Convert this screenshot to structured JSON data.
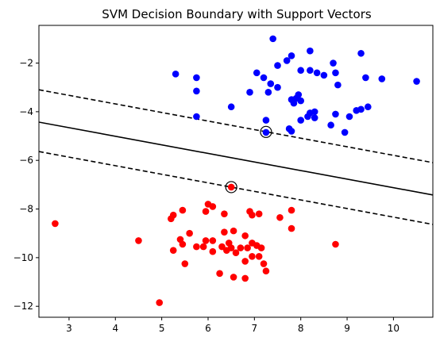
{
  "chart_data": {
    "type": "scatter",
    "title": "SVM Decision Boundary with Support Vectors",
    "xlabel": "",
    "ylabel": "",
    "xlim": [
      2.35,
      10.85
    ],
    "ylim": [
      -12.45,
      -0.45
    ],
    "xticks": [
      3,
      4,
      5,
      6,
      7,
      8,
      9,
      10
    ],
    "yticks": [
      -2,
      -4,
      -6,
      -8,
      -10,
      -12
    ],
    "grid": false,
    "colors": {
      "class_a": "#0000ff",
      "class_b": "#ff0000",
      "boundary": "#000000"
    },
    "series": [
      {
        "color": "#0000ff",
        "points": [
          [
            7.4,
            -1.0
          ],
          [
            8.2,
            -1.5
          ],
          [
            9.3,
            -1.6
          ],
          [
            7.8,
            -1.7
          ],
          [
            7.7,
            -1.9
          ],
          [
            7.5,
            -2.1
          ],
          [
            8.7,
            -2.0
          ],
          [
            8.0,
            -2.3
          ],
          [
            8.2,
            -2.3
          ],
          [
            8.35,
            -2.4
          ],
          [
            8.5,
            -2.5
          ],
          [
            7.05,
            -2.4
          ],
          [
            8.75,
            -2.4
          ],
          [
            5.3,
            -2.45
          ],
          [
            5.75,
            -2.6
          ],
          [
            9.4,
            -2.6
          ],
          [
            9.75,
            -2.65
          ],
          [
            10.5,
            -2.75
          ],
          [
            7.2,
            -2.6
          ],
          [
            7.35,
            -2.85
          ],
          [
            8.8,
            -2.9
          ],
          [
            7.5,
            -3.0
          ],
          [
            7.3,
            -3.2
          ],
          [
            6.9,
            -3.2
          ],
          [
            7.95,
            -3.3
          ],
          [
            7.9,
            -3.45
          ],
          [
            5.75,
            -3.15
          ],
          [
            7.8,
            -3.5
          ],
          [
            8.0,
            -3.55
          ],
          [
            7.85,
            -3.65
          ],
          [
            6.5,
            -3.8
          ],
          [
            9.45,
            -3.8
          ],
          [
            9.3,
            -3.9
          ],
          [
            8.3,
            -4.0
          ],
          [
            9.2,
            -3.95
          ],
          [
            8.2,
            -4.05
          ],
          [
            8.75,
            -4.1
          ],
          [
            8.15,
            -4.2
          ],
          [
            5.75,
            -4.2
          ],
          [
            9.05,
            -4.2
          ],
          [
            8.3,
            -4.25
          ],
          [
            7.25,
            -4.35
          ],
          [
            8.0,
            -4.35
          ],
          [
            8.65,
            -4.55
          ],
          [
            8.95,
            -4.85
          ],
          [
            7.75,
            -4.7
          ],
          [
            7.8,
            -4.8
          ],
          [
            7.25,
            -4.85
          ]
        ]
      },
      {
        "color": "#ff0000",
        "points": [
          [
            6.5,
            -7.1
          ],
          [
            6.0,
            -7.8
          ],
          [
            6.1,
            -7.9
          ],
          [
            5.95,
            -8.1
          ],
          [
            5.45,
            -8.05
          ],
          [
            6.35,
            -8.2
          ],
          [
            5.25,
            -8.25
          ],
          [
            5.2,
            -8.4
          ],
          [
            6.9,
            -8.1
          ],
          [
            6.95,
            -8.25
          ],
          [
            7.1,
            -8.2
          ],
          [
            7.8,
            -8.05
          ],
          [
            7.55,
            -8.35
          ],
          [
            2.7,
            -8.6
          ],
          [
            7.8,
            -8.8
          ],
          [
            6.55,
            -8.9
          ],
          [
            6.35,
            -8.95
          ],
          [
            5.6,
            -9.0
          ],
          [
            6.8,
            -9.1
          ],
          [
            4.5,
            -9.3
          ],
          [
            5.4,
            -9.25
          ],
          [
            5.95,
            -9.3
          ],
          [
            6.1,
            -9.3
          ],
          [
            6.45,
            -9.4
          ],
          [
            6.95,
            -9.4
          ],
          [
            5.45,
            -9.45
          ],
          [
            5.75,
            -9.55
          ],
          [
            5.9,
            -9.55
          ],
          [
            6.3,
            -9.55
          ],
          [
            6.5,
            -9.6
          ],
          [
            6.7,
            -9.6
          ],
          [
            6.85,
            -9.6
          ],
          [
            7.05,
            -9.5
          ],
          [
            7.15,
            -9.6
          ],
          [
            8.75,
            -9.45
          ],
          [
            5.25,
            -9.7
          ],
          [
            6.1,
            -9.75
          ],
          [
            6.4,
            -9.7
          ],
          [
            6.6,
            -9.8
          ],
          [
            6.95,
            -9.95
          ],
          [
            7.1,
            -9.95
          ],
          [
            6.8,
            -10.15
          ],
          [
            5.5,
            -10.25
          ],
          [
            7.2,
            -10.25
          ],
          [
            6.25,
            -10.65
          ],
          [
            7.25,
            -10.55
          ],
          [
            6.55,
            -10.8
          ],
          [
            6.8,
            -10.85
          ],
          [
            4.95,
            -11.85
          ]
        ]
      }
    ],
    "decision_boundary": {
      "slope": -0.3523,
      "intercept": -3.6
    },
    "margins": [
      {
        "slope": -0.3523,
        "intercept": -2.27
      },
      {
        "slope": -0.3523,
        "intercept": -4.81
      }
    ],
    "support_vectors": [
      [
        7.25,
        -4.83
      ],
      [
        6.5,
        -7.1
      ]
    ]
  }
}
